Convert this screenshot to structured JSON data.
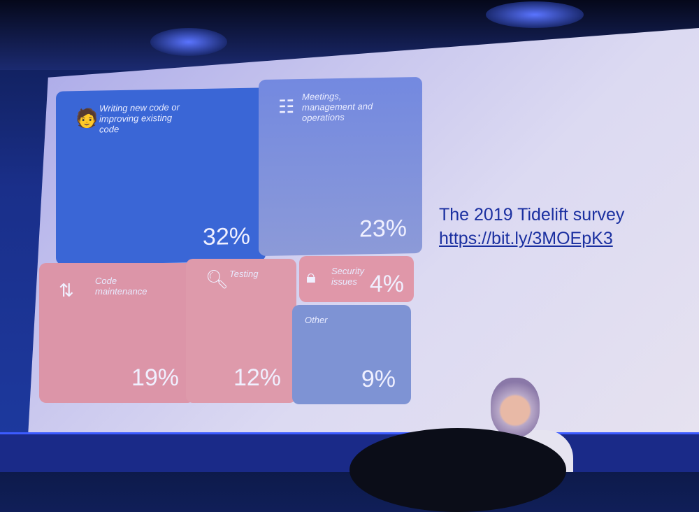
{
  "chart_data": {
    "type": "treemap",
    "items": [
      {
        "label": "Writing new code or improving existing code",
        "value": 32,
        "display": "32%",
        "icon": "person-at-laptop-icon",
        "color": "#3a66d6"
      },
      {
        "label": "Meetings, management and operations",
        "value": 23,
        "display": "23%",
        "icon": "meeting-icon",
        "color": "#7f93dc"
      },
      {
        "label": "Code maintenance",
        "value": 19,
        "display": "19%",
        "icon": "refresh-arrows-icon",
        "color": "#dc95a8"
      },
      {
        "label": "Testing",
        "value": 12,
        "display": "12%",
        "icon": "magnifier-icon",
        "color": "#de9aab"
      },
      {
        "label": "Security issues",
        "value": 4,
        "display": "4%",
        "icon": "lock-icon",
        "color": "#e097a9"
      },
      {
        "label": "Other",
        "value": 9,
        "display": "9%",
        "icon": "",
        "color": "#7e93d4"
      }
    ]
  },
  "caption": {
    "title": "The 2019 Tidelift survey",
    "link": "https://bit.ly/3MOEpK3"
  }
}
